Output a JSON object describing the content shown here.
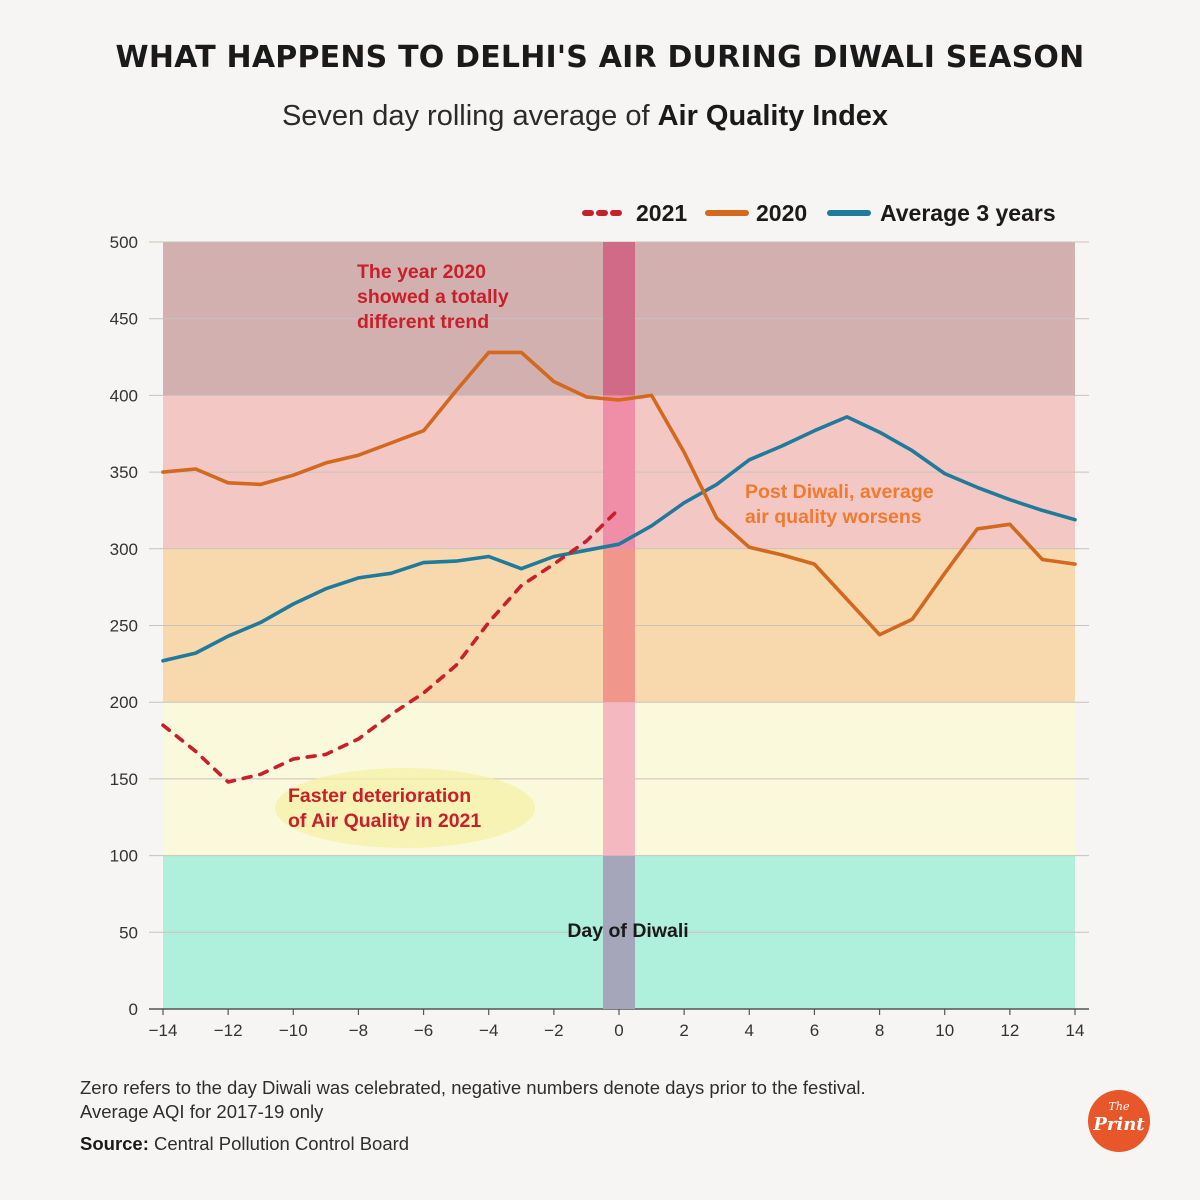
{
  "title": "WHAT HAPPENS TO DELHI'S AIR DURING DIWALI SEASON",
  "subtitle_prefix": "Seven day rolling average of ",
  "subtitle_bold": "Air Quality Index",
  "footnote_line1": "Zero refers to the day Diwali was celebrated, negative numbers denote days prior to the festival.",
  "footnote_line2": "Average AQI for 2017-19 only",
  "source_label": "Source:",
  "source_text": " Central Pollution Control Board",
  "logo_the": "The",
  "logo_print": "Print",
  "colors": {
    "s2021": "#c8202a",
    "s2020": "#d2691e",
    "avg": "#1f7a9c",
    "annotation_red": "#c8202a",
    "annotation_orange": "#f07a30",
    "diwali_band": "#c8587a"
  },
  "chart_data": {
    "type": "line",
    "title": "WHAT HAPPENS TO DELHI'S AIR DURING DIWALI SEASON",
    "subtitle": "Seven day rolling average of Air Quality Index",
    "xlabel": "",
    "ylabel": "",
    "xlim": [
      -14,
      14
    ],
    "ylim": [
      0,
      500
    ],
    "x_ticks": [
      -14,
      -12,
      -10,
      -8,
      -6,
      -4,
      -2,
      0,
      2,
      4,
      6,
      8,
      10,
      12,
      14
    ],
    "x_tick_labels": [
      "−14",
      "−12",
      "−10",
      "−8",
      "−6",
      "−4",
      "−2",
      "0",
      "2",
      "4",
      "6",
      "8",
      "10",
      "12",
      "14"
    ],
    "y_ticks": [
      0,
      50,
      100,
      150,
      200,
      250,
      300,
      350,
      400,
      450,
      500
    ],
    "y_tick_labels": [
      "0",
      "50",
      "100",
      "150",
      "200",
      "250",
      "300",
      "350",
      "400",
      "450",
      "500"
    ],
    "grid": true,
    "legend_position": "top-right",
    "bands": [
      {
        "from": 0,
        "to": 100,
        "color": "#aef0dc"
      },
      {
        "from": 100,
        "to": 200,
        "color": "#fbf9dc"
      },
      {
        "from": 200,
        "to": 300,
        "color": "#f8d9ae"
      },
      {
        "from": 300,
        "to": 400,
        "color": "#f3c8c4"
      },
      {
        "from": 400,
        "to": 500,
        "color": "#d3b0b0"
      }
    ],
    "diwali_day": 0,
    "series": [
      {
        "name": "2021",
        "style": "dashed",
        "x": [
          -14,
          -13,
          -12,
          -11,
          -10,
          -9,
          -8,
          -7,
          -6,
          -5,
          -4,
          -3,
          -2,
          -1,
          0
        ],
        "values": [
          185,
          168,
          148,
          153,
          163,
          166,
          176,
          192,
          206,
          224,
          252,
          276,
          290,
          305,
          326
        ]
      },
      {
        "name": "2020",
        "style": "solid",
        "x": [
          -14,
          -13,
          -12,
          -11,
          -10,
          -9,
          -8,
          -7,
          -6,
          -5,
          -4,
          -3,
          -2,
          -1,
          0,
          1,
          2,
          3,
          4,
          5,
          6,
          7,
          8,
          9,
          10,
          11,
          12,
          13,
          14
        ],
        "values": [
          350,
          352,
          343,
          342,
          348,
          356,
          361,
          369,
          377,
          403,
          428,
          428,
          409,
          399,
          397,
          400,
          363,
          320,
          301,
          296,
          290,
          267,
          244,
          254,
          284,
          313,
          316,
          293,
          290
        ]
      },
      {
        "name": "Average 3 years",
        "style": "solid",
        "x": [
          -14,
          -13,
          -12,
          -11,
          -10,
          -9,
          -8,
          -7,
          -6,
          -5,
          -4,
          -3,
          -2,
          -1,
          0,
          1,
          2,
          3,
          4,
          5,
          6,
          7,
          8,
          9,
          10,
          11,
          12,
          13,
          14
        ],
        "values": [
          227,
          232,
          243,
          252,
          264,
          274,
          281,
          284,
          291,
          292,
          295,
          287,
          295,
          299,
          303,
          315,
          330,
          342,
          358,
          367,
          377,
          386,
          376,
          364,
          349,
          340,
          332,
          325,
          319
        ]
      }
    ],
    "annotations": [
      {
        "lines": [
          "The year 2020",
          "showed a totally",
          "different trend"
        ],
        "color": "red"
      },
      {
        "lines": [
          "Faster deterioration",
          "of Air Quality in 2021"
        ],
        "color": "red"
      },
      {
        "lines": [
          "Post Diwali, average",
          "air quality worsens"
        ],
        "color": "orange"
      },
      {
        "lines": [
          "Day of Diwali"
        ],
        "color": "black"
      }
    ]
  }
}
